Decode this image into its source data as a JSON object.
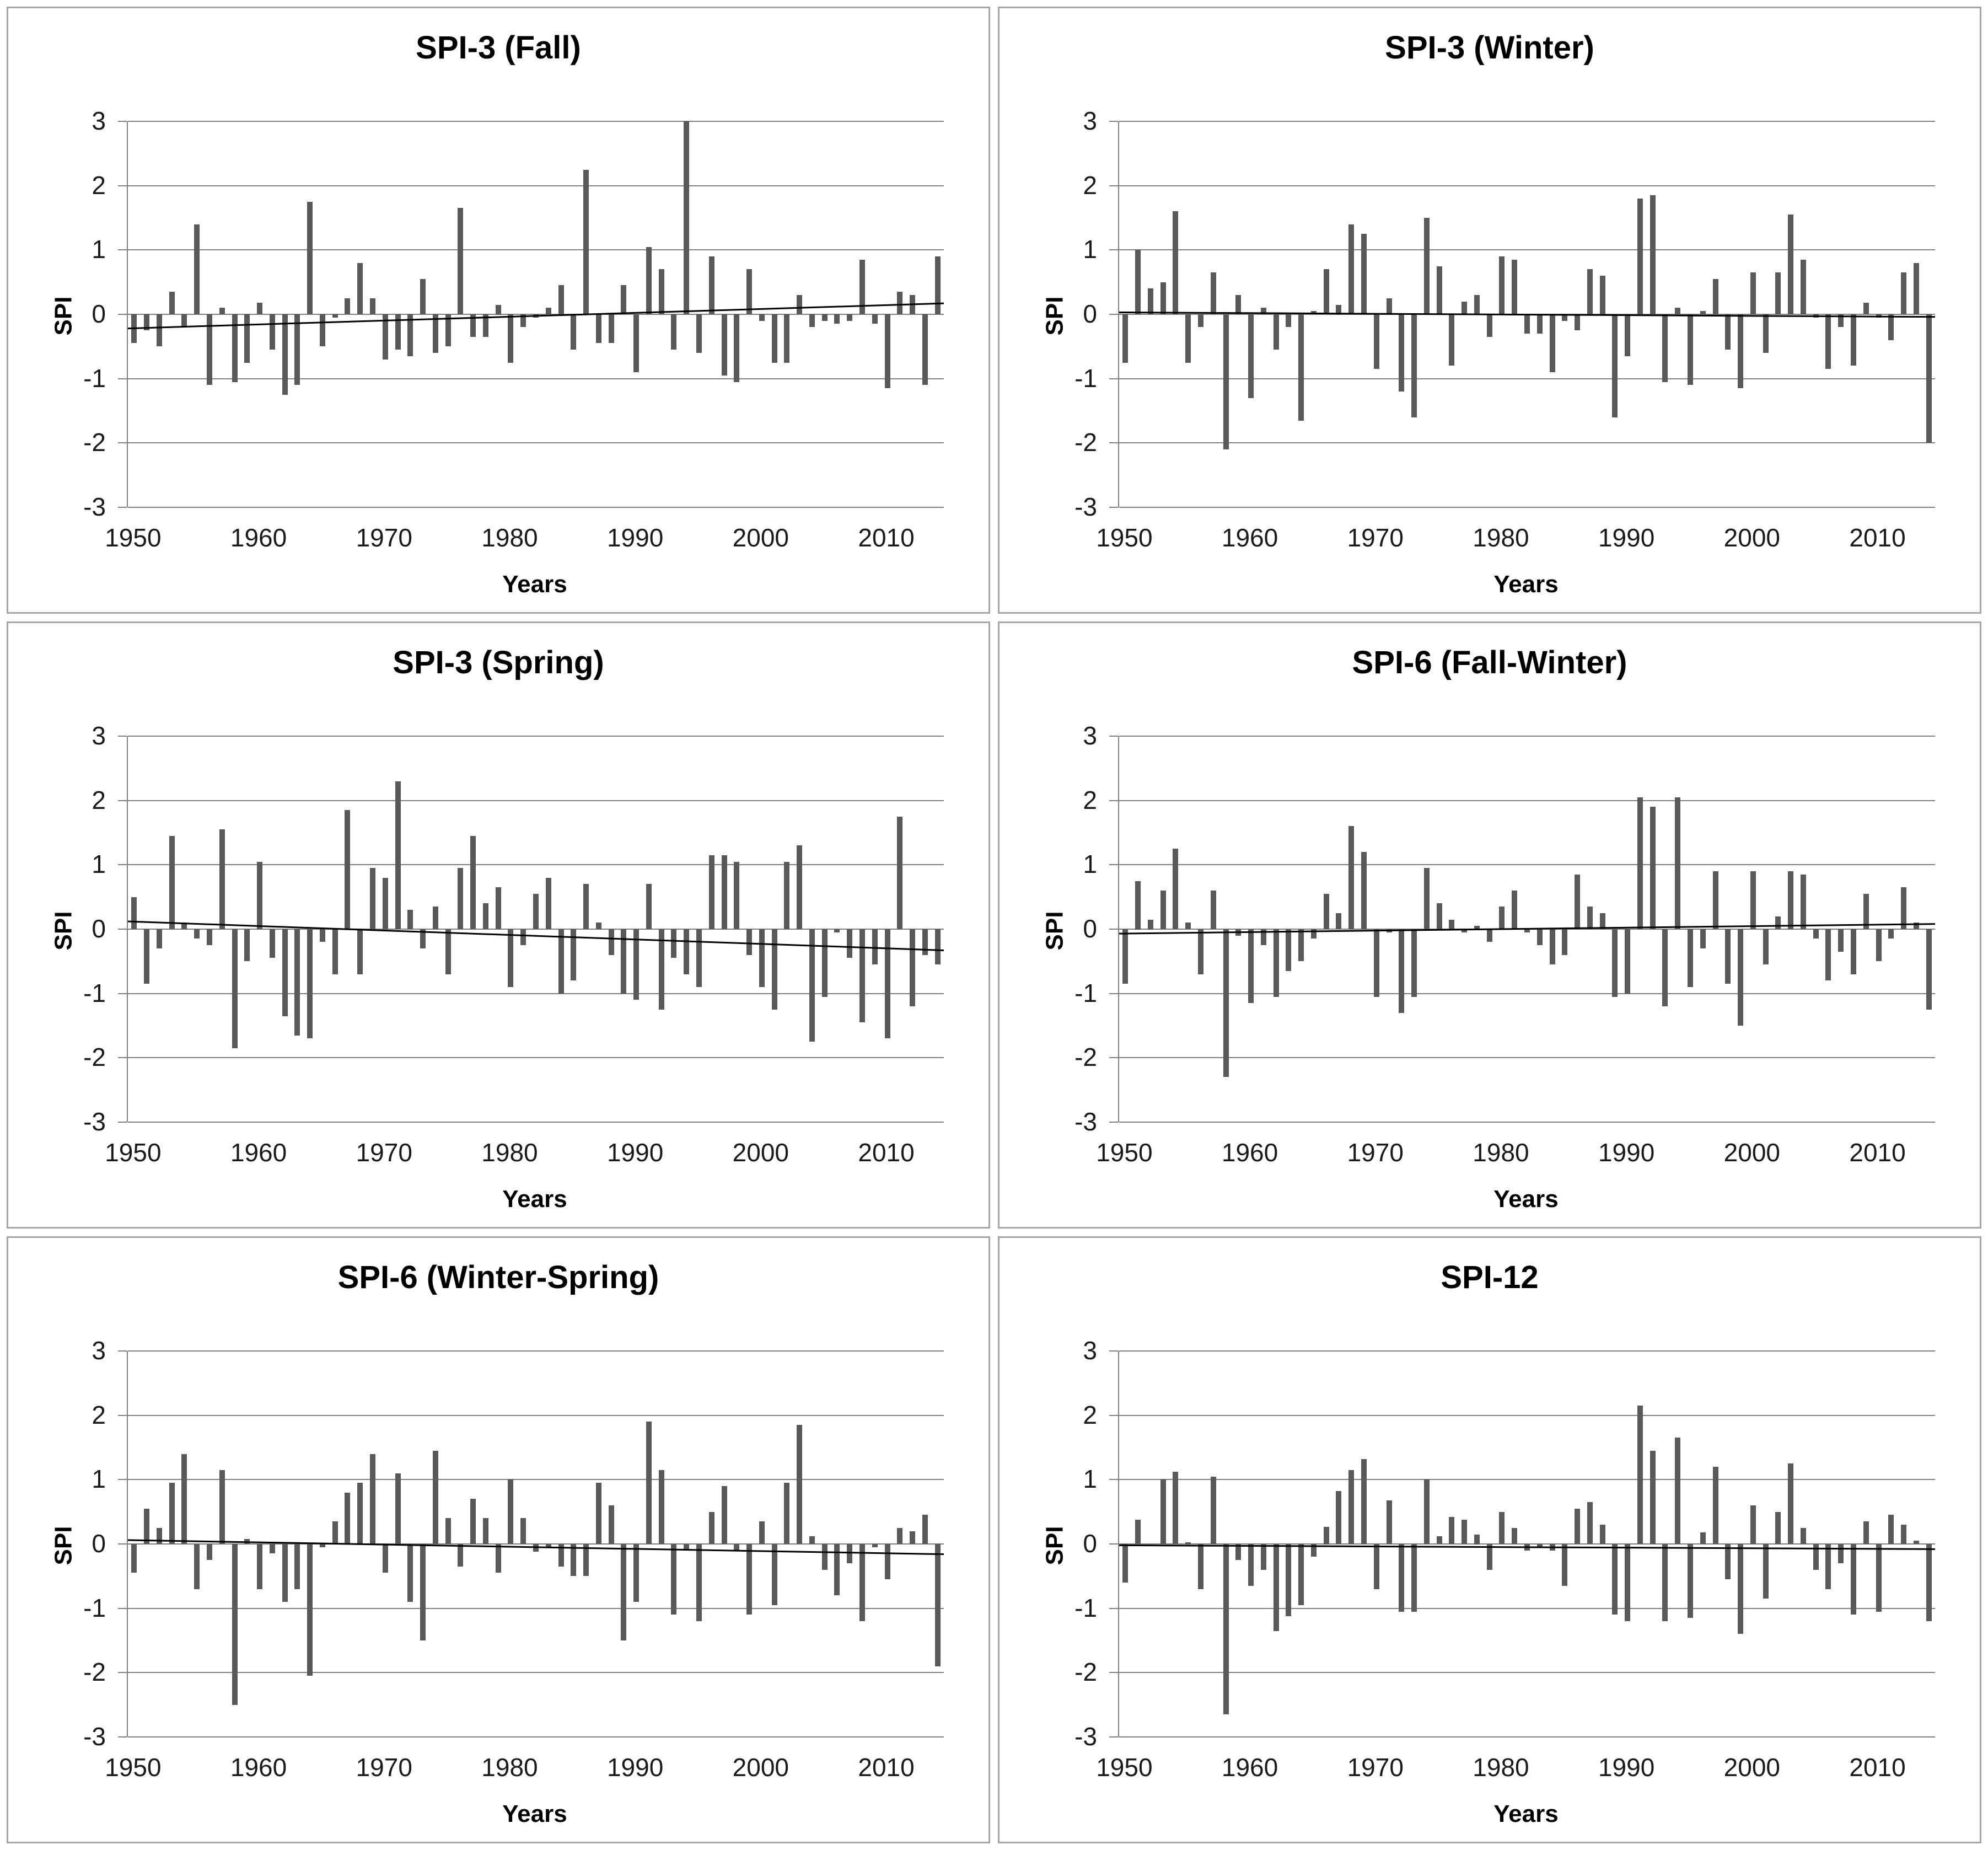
{
  "page": {
    "background": "#ffffff"
  },
  "colors": {
    "bar": "#595959",
    "gridline": "#808080",
    "trend_line": "#000000",
    "panel_border": "#a6a6a6",
    "text": "#000000"
  },
  "chart_data": {
    "type": "bar",
    "grid": true,
    "legend": "none",
    "ylim": [
      -3,
      3
    ],
    "yticks": [
      3,
      2,
      1,
      0,
      -1,
      -2,
      -3
    ],
    "xticks": [
      1950,
      1960,
      1970,
      1980,
      1990,
      2000,
      2010
    ],
    "x_start": 1950,
    "x_end": 2014,
    "years": [
      1950,
      1951,
      1952,
      1953,
      1954,
      1955,
      1956,
      1957,
      1958,
      1959,
      1960,
      1961,
      1962,
      1963,
      1964,
      1965,
      1966,
      1967,
      1968,
      1969,
      1970,
      1971,
      1972,
      1973,
      1974,
      1975,
      1976,
      1977,
      1978,
      1979,
      1980,
      1981,
      1982,
      1983,
      1984,
      1985,
      1986,
      1987,
      1988,
      1989,
      1990,
      1991,
      1992,
      1993,
      1994,
      1995,
      1996,
      1997,
      1998,
      1999,
      2000,
      2001,
      2002,
      2003,
      2004,
      2005,
      2006,
      2007,
      2008,
      2009,
      2010,
      2011,
      2012,
      2013,
      2014
    ],
    "charts": [
      {
        "title": "SPI-3 (Fall)",
        "xlabel": "Years",
        "ylabel": "SPI",
        "values": [
          -0.45,
          -0.25,
          -0.5,
          0.35,
          -0.2,
          1.4,
          -1.1,
          0.1,
          -1.05,
          -0.75,
          0.18,
          -0.55,
          -1.25,
          -1.1,
          1.75,
          -0.5,
          -0.05,
          0.25,
          0.8,
          0.25,
          -0.7,
          -0.55,
          -0.65,
          0.55,
          -0.6,
          -0.5,
          1.65,
          -0.35,
          -0.35,
          0.15,
          -0.75,
          -0.2,
          -0.05,
          0.1,
          0.45,
          -0.55,
          2.25,
          -0.45,
          -0.45,
          0.45,
          -0.9,
          1.05,
          0.7,
          -0.55,
          3.0,
          -0.6,
          0.9,
          -0.95,
          -1.05,
          0.7,
          -0.1,
          -0.75,
          -0.75,
          0.3,
          -0.2,
          -0.1,
          -0.15,
          -0.1,
          0.85,
          -0.15,
          -1.15,
          0.35,
          0.3,
          -1.1,
          0.9
        ],
        "trend": {
          "start": -0.22,
          "end": 0.17
        }
      },
      {
        "title": "SPI-3 (Winter)",
        "xlabel": "Years",
        "ylabel": "SPI",
        "values": [
          -0.75,
          1.0,
          0.4,
          0.5,
          1.6,
          -0.75,
          -0.2,
          0.65,
          -2.1,
          0.3,
          -1.3,
          0.1,
          -0.55,
          -0.2,
          -1.65,
          0.05,
          0.7,
          0.15,
          1.4,
          1.25,
          -0.85,
          0.25,
          -1.2,
          -1.6,
          1.5,
          0.75,
          -0.8,
          0.2,
          0.3,
          -0.35,
          0.9,
          0.85,
          -0.3,
          -0.3,
          -0.9,
          -0.1,
          -0.25,
          0.7,
          0.6,
          -1.6,
          -0.65,
          1.8,
          1.85,
          -1.05,
          0.1,
          -1.1,
          0.05,
          0.55,
          -0.55,
          -1.15,
          0.65,
          -0.6,
          0.65,
          1.55,
          0.85,
          -0.05,
          -0.85,
          -0.2,
          -0.8,
          0.18,
          -0.05,
          -0.4,
          0.65,
          0.8,
          -2.0
        ],
        "trend": {
          "start": 0.03,
          "end": -0.04
        }
      },
      {
        "title": "SPI-3 (Spring)",
        "xlabel": "Years",
        "ylabel": "SPI",
        "values": [
          0.5,
          -0.85,
          -0.3,
          1.45,
          0.1,
          -0.15,
          -0.25,
          1.55,
          -1.85,
          -0.5,
          1.05,
          -0.45,
          -1.35,
          -1.65,
          -1.7,
          -0.2,
          -0.7,
          1.85,
          -0.7,
          0.95,
          0.8,
          2.3,
          0.3,
          -0.3,
          0.35,
          -0.7,
          0.95,
          1.45,
          0.4,
          0.65,
          -0.9,
          -0.25,
          0.55,
          0.8,
          -1.0,
          -0.8,
          0.7,
          0.1,
          -0.4,
          -1.0,
          -1.1,
          0.7,
          -1.25,
          -0.45,
          -0.7,
          -0.9,
          1.15,
          1.15,
          1.05,
          -0.4,
          -0.9,
          -1.25,
          1.05,
          1.3,
          -1.75,
          -1.05,
          -0.05,
          -0.45,
          -1.45,
          -0.55,
          -1.7,
          1.75,
          -1.2,
          -0.4,
          -0.55
        ],
        "trend": {
          "start": 0.12,
          "end": -0.33
        }
      },
      {
        "title": "SPI-6 (Fall-Winter)",
        "xlabel": "Years",
        "ylabel": "SPI",
        "values": [
          -0.85,
          0.75,
          0.15,
          0.6,
          1.25,
          0.1,
          -0.7,
          0.6,
          -2.3,
          -0.1,
          -1.15,
          -0.25,
          -1.05,
          -0.65,
          -0.5,
          -0.15,
          0.55,
          0.25,
          1.6,
          1.2,
          -1.05,
          -0.05,
          -1.3,
          -1.05,
          0.95,
          0.4,
          0.15,
          -0.05,
          0.05,
          -0.2,
          0.35,
          0.6,
          -0.05,
          -0.25,
          -0.55,
          -0.4,
          0.85,
          0.35,
          0.25,
          -1.05,
          -1.0,
          2.05,
          1.9,
          -1.2,
          2.05,
          -0.9,
          -0.3,
          0.9,
          -0.85,
          -1.5,
          0.9,
          -0.55,
          0.2,
          0.9,
          0.85,
          -0.15,
          -0.8,
          -0.35,
          -0.7,
          0.55,
          -0.5,
          -0.15,
          0.65,
          0.1,
          -1.25
        ],
        "trend": {
          "start": -0.07,
          "end": 0.08
        }
      },
      {
        "title": "SPI-6 (Winter-Spring)",
        "xlabel": "Years",
        "ylabel": "SPI",
        "values": [
          -0.45,
          0.55,
          0.25,
          0.95,
          1.4,
          -0.7,
          -0.25,
          1.15,
          -2.5,
          0.08,
          -0.7,
          -0.15,
          -0.9,
          -0.7,
          -2.05,
          -0.05,
          0.35,
          0.8,
          0.95,
          1.4,
          -0.45,
          1.1,
          -0.9,
          -1.5,
          1.45,
          0.4,
          -0.35,
          0.7,
          0.4,
          -0.45,
          1.0,
          0.4,
          -0.12,
          -0.05,
          -0.35,
          -0.5,
          -0.5,
          0.95,
          0.6,
          -1.5,
          -0.9,
          1.9,
          1.15,
          -1.1,
          -0.1,
          -1.2,
          0.5,
          0.9,
          -0.1,
          -1.1,
          0.35,
          -0.95,
          0.95,
          1.85,
          0.12,
          -0.4,
          -0.8,
          -0.3,
          -1.2,
          -0.05,
          -0.55,
          0.25,
          0.2,
          0.45,
          -1.9
        ],
        "trend": {
          "start": 0.06,
          "end": -0.16
        }
      },
      {
        "title": "SPI-12",
        "xlabel": "Years",
        "ylabel": "SPI",
        "values": [
          -0.6,
          0.38,
          0.0,
          1.0,
          1.12,
          0.03,
          -0.7,
          1.05,
          -2.65,
          -0.25,
          -0.65,
          -0.4,
          -1.35,
          -1.12,
          -0.95,
          -0.2,
          0.27,
          0.82,
          1.15,
          1.32,
          -0.7,
          0.68,
          -1.05,
          -1.05,
          1.0,
          0.12,
          0.42,
          0.38,
          0.15,
          -0.4,
          0.5,
          0.25,
          -0.1,
          -0.05,
          -0.1,
          -0.65,
          0.55,
          0.65,
          0.3,
          -1.1,
          -1.2,
          2.15,
          1.45,
          -1.2,
          1.65,
          -1.15,
          0.18,
          1.2,
          -0.55,
          -1.4,
          0.6,
          -0.85,
          0.5,
          1.25,
          0.25,
          -0.4,
          -0.7,
          -0.3,
          -1.1,
          0.35,
          -1.05,
          0.45,
          0.3,
          0.05,
          -1.2
        ],
        "trend": {
          "start": -0.02,
          "end": -0.08
        }
      }
    ]
  }
}
